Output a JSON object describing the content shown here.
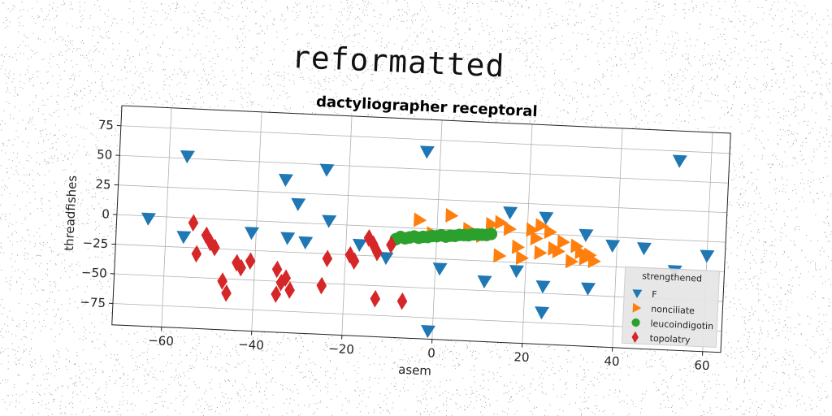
{
  "header": {
    "title": "reformatted"
  },
  "colors": {
    "F": "#1f77b4",
    "nonciliate": "#ff7f0e",
    "leucoindigotin": "#2ca02c",
    "topolatry": "#d62728"
  },
  "chart_data": {
    "type": "scatter",
    "title": "dactyliographer receptoral",
    "xlabel": "asem",
    "ylabel": "threadfishes",
    "xlim": [
      -71,
      64
    ],
    "ylim": [
      -93,
      92
    ],
    "xticks": [
      -60,
      -40,
      -20,
      0,
      20,
      40,
      60
    ],
    "yticks": [
      75,
      50,
      25,
      0,
      -25,
      -50,
      -75
    ],
    "xtick_labels": [
      "−60",
      "−40",
      "−20",
      "0",
      "20",
      "40",
      "60"
    ],
    "ytick_labels": [
      "75",
      "50",
      "25",
      "0",
      "−25",
      "−50",
      "−75"
    ],
    "grid": true,
    "legend": {
      "title": "strengthened",
      "location": "lower-right"
    },
    "series": [
      {
        "name": "F",
        "marker": "triangle-down",
        "points": [
          [
            -64,
            -2
          ],
          [
            -56,
            52
          ],
          [
            -56,
            -16
          ],
          [
            -41,
            -10
          ],
          [
            -34,
            36
          ],
          [
            -33,
            -13
          ],
          [
            -31,
            16
          ],
          [
            -29,
            -16
          ],
          [
            -25,
            46
          ],
          [
            -24,
            3
          ],
          [
            -17,
            -16
          ],
          [
            -11,
            -26
          ],
          [
            -3,
            65
          ],
          [
            1,
            -33
          ],
          [
            -1,
            -86
          ],
          [
            11,
            -42
          ],
          [
            16,
            17
          ],
          [
            18,
            -32
          ],
          [
            24,
            14
          ],
          [
            24,
            -44
          ],
          [
            24,
            -66
          ],
          [
            33,
            1
          ],
          [
            34,
            -44
          ],
          [
            39,
            -7
          ],
          [
            46,
            -8
          ],
          [
            53,
            67
          ],
          [
            53,
            -26
          ],
          [
            60,
            -12
          ]
        ]
      },
      {
        "name": "nonciliate",
        "marker": "triangle-right",
        "points": [
          [
            -4,
            7
          ],
          [
            -1,
            -4
          ],
          [
            3,
            12
          ],
          [
            7,
            1
          ],
          [
            10,
            -4
          ],
          [
            12,
            6
          ],
          [
            14,
            8
          ],
          [
            14,
            -20
          ],
          [
            16,
            3
          ],
          [
            18,
            -12
          ],
          [
            19,
            -21
          ],
          [
            21,
            3
          ],
          [
            22,
            -4
          ],
          [
            23,
            7
          ],
          [
            23,
            -16
          ],
          [
            25,
            2
          ],
          [
            26,
            -12
          ],
          [
            27,
            -14
          ],
          [
            28,
            -6
          ],
          [
            30,
            -22
          ],
          [
            31,
            -9
          ],
          [
            32,
            -14
          ],
          [
            33,
            -19
          ],
          [
            34,
            -16
          ],
          [
            35,
            -21
          ]
        ]
      },
      {
        "name": "leucoindigotin",
        "marker": "circle",
        "points": [
          [
            -9,
            -10
          ],
          [
            -8,
            -8
          ],
          [
            -7,
            -9
          ],
          [
            -6,
            -8
          ],
          [
            -5,
            -7
          ],
          [
            -4,
            -8
          ],
          [
            -3,
            -7
          ],
          [
            -2,
            -7
          ],
          [
            -1,
            -6
          ],
          [
            0,
            -6
          ],
          [
            1,
            -5
          ],
          [
            2,
            -6
          ],
          [
            3,
            -5
          ],
          [
            4,
            -5
          ],
          [
            5,
            -4
          ],
          [
            6,
            -4
          ],
          [
            7,
            -4
          ],
          [
            8,
            -3
          ],
          [
            9,
            -3
          ],
          [
            10,
            -3
          ],
          [
            11,
            -3
          ],
          [
            12,
            -2
          ]
        ]
      },
      {
        "name": "topolatry",
        "marker": "diamond",
        "points": [
          [
            -54,
            -4
          ],
          [
            -53,
            -30
          ],
          [
            -51,
            -14
          ],
          [
            -50,
            -20
          ],
          [
            -49,
            -24
          ],
          [
            -47,
            -52
          ],
          [
            -46,
            -62
          ],
          [
            -44,
            -36
          ],
          [
            -43,
            -40
          ],
          [
            -41,
            -34
          ],
          [
            -35,
            -40
          ],
          [
            -35,
            -61
          ],
          [
            -34,
            -51
          ],
          [
            -33,
            -47
          ],
          [
            -32,
            -57
          ],
          [
            -25,
            -52
          ],
          [
            -24,
            -29
          ],
          [
            -19,
            -25
          ],
          [
            -18,
            -30
          ],
          [
            -15,
            -10
          ],
          [
            -14,
            -15
          ],
          [
            -13,
            -22
          ],
          [
            -13,
            -61
          ],
          [
            -10,
            -15
          ],
          [
            -7,
            -62
          ]
        ]
      }
    ]
  }
}
